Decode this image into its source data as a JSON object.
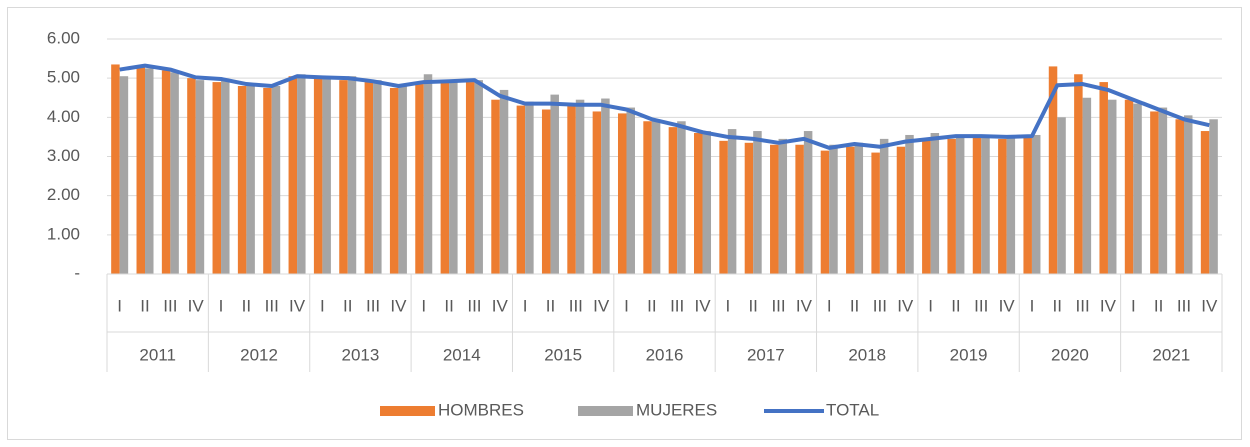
{
  "chart_data": {
    "type": "bar",
    "categories": [
      "I",
      "II",
      "III",
      "IV",
      "I",
      "II",
      "III",
      "IV",
      "I",
      "II",
      "III",
      "IV",
      "I",
      "II",
      "III",
      "IV",
      "I",
      "II",
      "III",
      "IV",
      "I",
      "II",
      "III",
      "IV",
      "I",
      "II",
      "III",
      "IV",
      "I",
      "II",
      "III",
      "IV",
      "I",
      "II",
      "III",
      "IV",
      "I",
      "II",
      "III",
      "IV",
      "I",
      "II",
      "III",
      "IV"
    ],
    "years": [
      "2011",
      "2012",
      "2013",
      "2014",
      "2015",
      "2016",
      "2017",
      "2018",
      "2019",
      "2020",
      "2021"
    ],
    "series": [
      {
        "name": "HOMBRES",
        "type": "bar",
        "color": "#ed7d31",
        "values": [
          5.35,
          5.3,
          5.2,
          5.0,
          4.9,
          4.8,
          4.75,
          5.05,
          5.0,
          4.95,
          4.9,
          4.75,
          4.85,
          4.9,
          4.9,
          4.45,
          4.3,
          4.2,
          4.3,
          4.15,
          4.1,
          3.9,
          3.75,
          3.6,
          3.4,
          3.35,
          3.3,
          3.3,
          3.15,
          3.25,
          3.1,
          3.25,
          3.4,
          3.45,
          3.5,
          3.45,
          3.55,
          5.3,
          5.1,
          4.9,
          4.45,
          4.15,
          3.95,
          3.65
        ]
      },
      {
        "name": "MUJERES",
        "type": "bar",
        "color": "#a5a5a5",
        "values": [
          5.05,
          5.25,
          5.15,
          4.95,
          4.95,
          4.85,
          4.8,
          5.1,
          5.05,
          5.05,
          4.95,
          4.85,
          5.1,
          4.95,
          4.95,
          4.7,
          4.4,
          4.58,
          4.45,
          4.48,
          4.25,
          3.95,
          3.9,
          3.65,
          3.7,
          3.65,
          3.45,
          3.65,
          3.3,
          3.35,
          3.45,
          3.55,
          3.6,
          3.55,
          3.55,
          3.5,
          3.55,
          4.0,
          4.5,
          4.45,
          4.35,
          4.25,
          4.05,
          3.95
        ]
      },
      {
        "name": "TOTAL",
        "type": "line",
        "color": "#4472c4",
        "values": [
          5.22,
          5.32,
          5.22,
          5.02,
          4.98,
          4.85,
          4.8,
          5.05,
          5.02,
          5.0,
          4.92,
          4.8,
          4.9,
          4.92,
          4.95,
          4.55,
          4.35,
          4.35,
          4.32,
          4.32,
          4.2,
          3.95,
          3.8,
          3.62,
          3.5,
          3.45,
          3.35,
          3.45,
          3.22,
          3.32,
          3.25,
          3.38,
          3.45,
          3.52,
          3.52,
          3.5,
          3.52,
          4.82,
          4.85,
          4.7,
          4.45,
          4.2,
          3.95,
          3.8
        ]
      }
    ],
    "ylim": [
      0,
      6
    ],
    "yticks": [
      {
        "value": 0,
        "label": "-"
      },
      {
        "value": 1,
        "label": "1.00"
      },
      {
        "value": 2,
        "label": "2.00"
      },
      {
        "value": 3,
        "label": "3.00"
      },
      {
        "value": 4,
        "label": "4.00"
      },
      {
        "value": 5,
        "label": "5.00"
      },
      {
        "value": 6,
        "label": "6.00"
      }
    ],
    "grid": true,
    "legend": "bottom"
  }
}
